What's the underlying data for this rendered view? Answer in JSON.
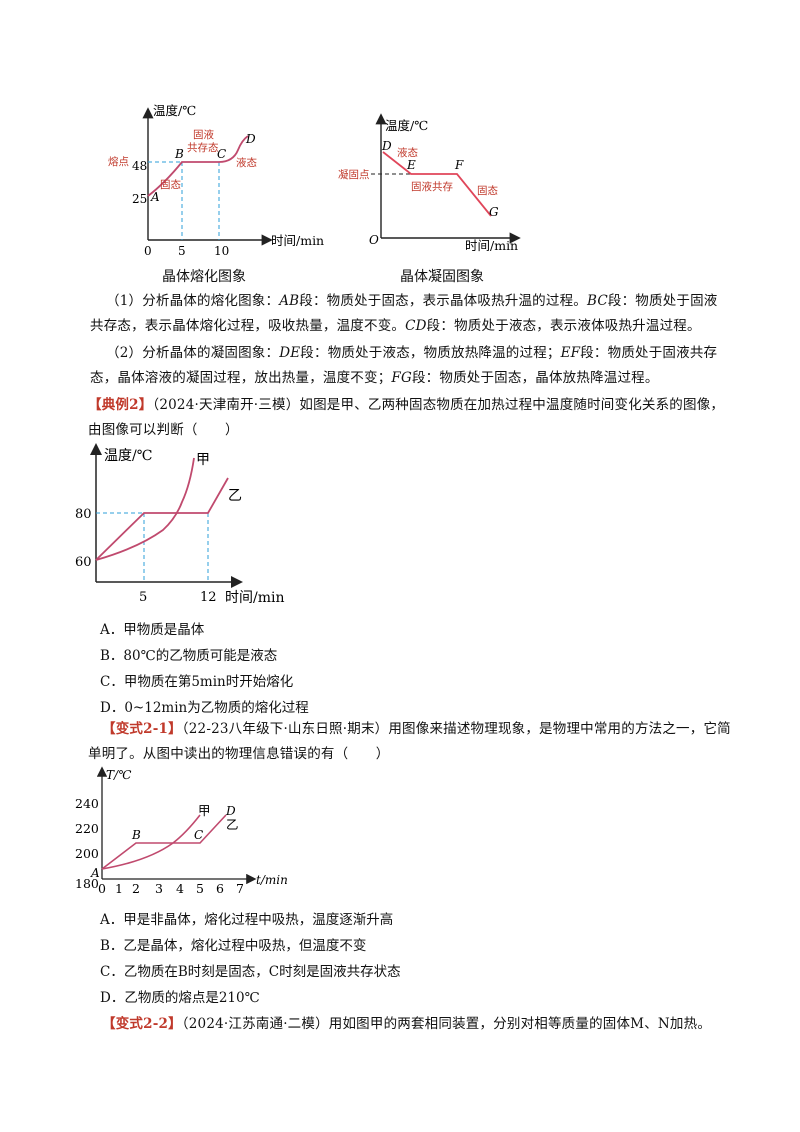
{
  "fig1": {
    "ylabel": "温度/℃",
    "xlabel": "时间/min",
    "origin": "0",
    "xticks": [
      "5",
      "10"
    ],
    "yticks": [
      "48",
      "25"
    ],
    "melting_point": "熔点",
    "pointA": "A",
    "pointB": "B",
    "pointC": "C",
    "pointD": "D",
    "solid": "固态",
    "coexist_line1": "固液",
    "coexist_line2": "共存态",
    "liquid": "液态",
    "caption": "晶体熔化图象"
  },
  "fig2": {
    "ylabel": "温度/℃",
    "xlabel": "时间/min",
    "origin": "O",
    "freezing_point": "凝固点",
    "pointD": "D",
    "pointE": "E",
    "pointF": "F",
    "pointG": "G",
    "liquid": "液态",
    "coexist": "固液共存",
    "solid": "固态",
    "caption": "晶体凝固图象"
  },
  "analysis": {
    "p1_a": "（1）分析晶体的熔化图象：",
    "p1_ab": "AB",
    "p1_b": "段：物质处于固态，表示晶体吸热升温的过程。",
    "p1_bc": "BC",
    "p1_c": "段：物质处于固液共存态，表示晶体熔化过程，吸收热量，温度不变。",
    "p1_cd": "CD",
    "p1_d": "段：物质处于液态，表示液体吸热升温过程。",
    "p2_a": "（2）分析晶体的凝固图象：",
    "p2_de": "DE",
    "p2_b": "段：物质处于液态，物质放热降温的过程；",
    "p2_ef": "EF",
    "p2_c": "段：物质处于固液共存态，晶体溶液的凝固过程，放出热量，温度不变；",
    "p2_fg": "FG",
    "p2_d": "段：物质处于固态，晶体放热降温过程。"
  },
  "example2": {
    "tag": "【典例2】",
    "text": "（2024·天津南开·三模）如图是甲、乙两种固态物质在加热过程中温度随时间变化关系的图像，由图像可以判断（　　）",
    "chart": {
      "ylabel": "温度/℃",
      "xlabel": "时间/min",
      "yticks": [
        "80",
        "60"
      ],
      "xticks": [
        "5",
        "12"
      ],
      "series_jia": "甲",
      "series_yi": "乙"
    },
    "options": [
      "A．甲物质是晶体",
      "B．80℃的乙物质可能是液态",
      "C．甲物质在第5min时开始熔化",
      "D．0~12min为乙物质的熔化过程"
    ]
  },
  "variant21": {
    "tag": "【变式2-1】",
    "text": "（22-23八年级下·山东日照·期末）用图像来描述物理现象，是物理中常用的方法之一，它简单明了。从图中读出的物理信息错误的有（　　）",
    "chart": {
      "ylabel": "T/℃",
      "xlabel": "t/min",
      "yticks": [
        "240",
        "220",
        "200",
        "180"
      ],
      "xticks": [
        "0",
        "1",
        "2",
        "3",
        "4",
        "5",
        "6",
        "7"
      ],
      "pointA": "A",
      "pointB": "B",
      "pointC": "C",
      "pointD": "D",
      "series_jia": "甲",
      "series_yi": "乙"
    },
    "options": [
      "A．甲是非晶体，熔化过程中吸热，温度逐渐升高",
      "B．乙是晶体，熔化过程中吸热，但温度不变",
      "C．乙物质在B时刻是固态，C时刻是固液共存状态",
      "D．乙物质的熔点是210℃"
    ]
  },
  "variant22": {
    "tag": "【变式2-2】",
    "text": "（2024·江苏南通·二模）用如图甲的两套相同装置，分别对相等质量的固体M、N加热。"
  }
}
